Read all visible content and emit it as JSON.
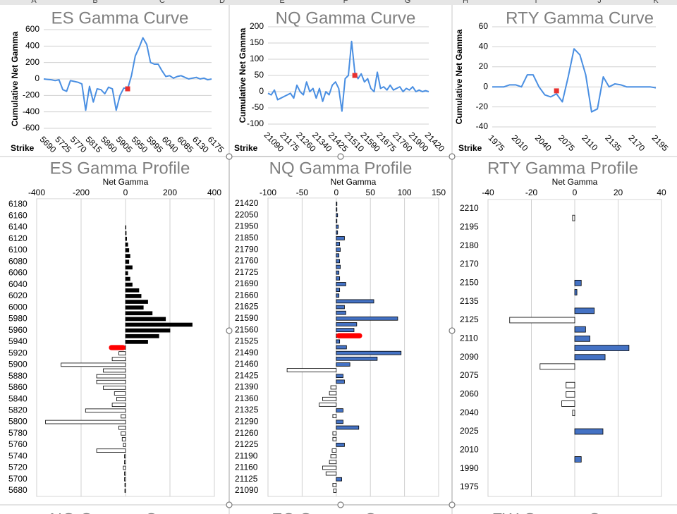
{
  "column_headers": [
    "A",
    "B",
    "C",
    "D",
    "E",
    "F",
    "G",
    "H",
    "I",
    "J",
    "K"
  ],
  "partial_titles": [
    "NG Gamma Curve",
    "ZC Gamma Curve",
    "ZW Gamma Curve"
  ],
  "chart_data": [
    {
      "type": "line",
      "title": "ES Gamma Curve",
      "y_axis_title": "Cumulative Net Gamma",
      "x_axis_title": "Strike",
      "grid": true,
      "ylim": [
        -600,
        600
      ],
      "yticks": [
        -600,
        -400,
        -200,
        0,
        200,
        400,
        600
      ],
      "categories": [
        5690,
        null,
        null,
        null,
        5725,
        null,
        null,
        null,
        5770,
        null,
        null,
        null,
        5815,
        null,
        null,
        null,
        5860,
        null,
        null,
        null,
        5905,
        null,
        null,
        null,
        5950,
        null,
        null,
        null,
        5995,
        null,
        null,
        null,
        6040,
        null,
        null,
        null,
        6085,
        null,
        null,
        null,
        6130,
        null,
        null,
        null,
        6175
      ],
      "series": [
        {
          "color": "#4a8fe2",
          "values": [
            0,
            -5,
            -10,
            -20,
            -10,
            -130,
            -150,
            -20,
            -30,
            -40,
            -60,
            -380,
            -90,
            -280,
            -120,
            -130,
            -180,
            -100,
            -120,
            -380,
            -200,
            -110,
            -120,
            40,
            280,
            380,
            500,
            420,
            200,
            180,
            180,
            100,
            30,
            40,
            10,
            30,
            40,
            20,
            0,
            10,
            20,
            0,
            10,
            -10,
            0
          ]
        },
        {
          "color": "#e8312f",
          "marker": "square",
          "values": [
            null,
            null,
            null,
            null,
            null,
            null,
            null,
            null,
            null,
            null,
            null,
            null,
            null,
            null,
            null,
            null,
            null,
            null,
            null,
            null,
            null,
            null,
            -120,
            null,
            null,
            null,
            null,
            null,
            null,
            null,
            null,
            null,
            null,
            null,
            null,
            null,
            null,
            null,
            null,
            null,
            null,
            null,
            null,
            null,
            null
          ]
        }
      ]
    },
    {
      "type": "line",
      "title": "NQ Gamma Curve",
      "y_axis_title": "Cumulative Net Gamma",
      "x_axis_title": "Strike",
      "grid": true,
      "ylim": [
        -100,
        200
      ],
      "yticks": [
        -100,
        -50,
        0,
        50,
        100,
        150,
        200
      ],
      "categories": [
        21090,
        null,
        null,
        null,
        null,
        21175,
        null,
        null,
        null,
        null,
        21260,
        null,
        null,
        null,
        null,
        21340,
        null,
        null,
        null,
        null,
        21425,
        null,
        null,
        null,
        null,
        21510,
        null,
        null,
        null,
        null,
        21590,
        null,
        null,
        null,
        null,
        21675,
        null,
        null,
        null,
        null,
        21760,
        null,
        null,
        null,
        null,
        21900,
        null,
        null,
        null,
        null,
        21420
      ],
      "series": [
        {
          "color": "#4a8fe2",
          "values": [
            -5,
            -10,
            5,
            -25,
            -20,
            -15,
            -10,
            -5,
            -20,
            20,
            0,
            -10,
            30,
            0,
            10,
            -20,
            10,
            -30,
            0,
            -10,
            20,
            30,
            10,
            -60,
            40,
            50,
            155,
            60,
            40,
            55,
            30,
            40,
            10,
            0,
            60,
            10,
            15,
            5,
            20,
            5,
            10,
            15,
            0,
            10,
            5,
            15,
            0,
            5,
            0,
            3,
            0
          ]
        },
        {
          "color": "#e8312f",
          "marker": "square",
          "values": [
            null,
            null,
            null,
            null,
            null,
            null,
            null,
            null,
            null,
            null,
            null,
            null,
            null,
            null,
            null,
            null,
            null,
            null,
            null,
            null,
            null,
            null,
            null,
            null,
            null,
            null,
            null,
            50,
            null,
            null,
            null,
            null,
            null,
            null,
            null,
            null,
            null,
            null,
            null,
            null,
            null,
            null,
            null,
            null,
            null,
            null,
            null,
            null,
            null,
            null,
            null
          ]
        }
      ]
    },
    {
      "type": "line",
      "title": "RTY Gamma Curve",
      "y_axis_title": "Cumulative Net Gamma",
      "x_axis_title": "Strike",
      "grid": true,
      "ylim": [
        -40,
        60
      ],
      "yticks": [
        -40,
        -20,
        0,
        20,
        40,
        60
      ],
      "categories": [
        1975,
        null,
        null,
        null,
        2010,
        null,
        null,
        null,
        2040,
        null,
        null,
        null,
        2075,
        null,
        null,
        null,
        2110,
        null,
        null,
        null,
        2135,
        null,
        null,
        null,
        2170,
        null,
        null,
        null,
        2195
      ],
      "series": [
        {
          "color": "#4a8fe2",
          "values": [
            0,
            0,
            0,
            2,
            2,
            0,
            12,
            12,
            0,
            -8,
            -10,
            -7,
            -15,
            10,
            38,
            32,
            12,
            -25,
            -22,
            10,
            0,
            3,
            2,
            0,
            0,
            0,
            0,
            0,
            -1
          ]
        },
        {
          "color": "#e8312f",
          "marker": "square",
          "values": [
            null,
            null,
            null,
            null,
            null,
            null,
            null,
            null,
            null,
            null,
            null,
            -4,
            null,
            null,
            null,
            null,
            null,
            null,
            null,
            null,
            null,
            null,
            null,
            null,
            null,
            null,
            null,
            null,
            null
          ]
        }
      ]
    },
    {
      "type": "barh",
      "title": "ES Gamma Profile",
      "x_axis_title": "Net Gamma",
      "grid": true,
      "xlim": [
        -400,
        400
      ],
      "xticks": [
        -400,
        -200,
        0,
        200,
        400
      ],
      "categories": [
        6180,
        null,
        6160,
        null,
        6140,
        null,
        6120,
        null,
        6100,
        null,
        6080,
        null,
        6060,
        null,
        6040,
        null,
        6020,
        null,
        6000,
        null,
        5980,
        null,
        5960,
        null,
        5940,
        null,
        5920,
        null,
        5900,
        null,
        5880,
        null,
        5860,
        null,
        5840,
        null,
        5820,
        null,
        5800,
        null,
        5780,
        null,
        5760,
        null,
        5740,
        null,
        5720,
        null,
        5700,
        null,
        5680
      ],
      "series": [
        {
          "color": "#000000",
          "negative_color": "#ffffff",
          "border": "#000000",
          "values": [
            0,
            0,
            0,
            0,
            2,
            3,
            5,
            10,
            15,
            20,
            15,
            30,
            10,
            20,
            30,
            60,
            70,
            100,
            80,
            120,
            180,
            300,
            200,
            150,
            100,
            -40,
            -30,
            -60,
            -290,
            -100,
            -130,
            -130,
            -100,
            -50,
            -40,
            -60,
            -180,
            -20,
            -360,
            -30,
            -20,
            -15,
            -10,
            -130,
            -5,
            -5,
            -10,
            -5,
            -5,
            -3,
            -3
          ]
        },
        {
          "color": "#ff0000",
          "border": false,
          "values": [
            null,
            null,
            null,
            null,
            null,
            null,
            null,
            null,
            null,
            null,
            null,
            null,
            null,
            null,
            null,
            null,
            null,
            null,
            null,
            null,
            null,
            null,
            null,
            null,
            null,
            -75,
            null,
            null,
            null,
            null,
            null,
            null,
            null,
            null,
            null,
            null,
            null,
            null,
            null,
            null,
            null,
            null,
            null,
            null,
            null,
            null,
            null,
            null,
            null,
            null,
            null
          ]
        }
      ]
    },
    {
      "type": "barh",
      "title": "NQ Gamma Profile",
      "x_axis_title": "Net Gamma",
      "grid": true,
      "xlim": [
        -100,
        150
      ],
      "xticks": [
        -100,
        -50,
        0,
        50,
        100,
        150
      ],
      "categories": [
        21420,
        null,
        22050,
        null,
        21950,
        null,
        21850,
        null,
        21790,
        null,
        21760,
        null,
        21725,
        null,
        21690,
        null,
        21660,
        null,
        21625,
        null,
        21590,
        null,
        21560,
        null,
        21525,
        null,
        21490,
        null,
        21460,
        null,
        21425,
        null,
        21390,
        null,
        21360,
        null,
        21325,
        null,
        21290,
        null,
        21260,
        null,
        21225,
        null,
        21190,
        null,
        21160,
        null,
        21125,
        null,
        21090
      ],
      "series": [
        {
          "color": "#4472c4",
          "negative_color": "#ffffff",
          "border": "#000000",
          "values": [
            1,
            1,
            2,
            1,
            3,
            2,
            12,
            5,
            6,
            4,
            5,
            6,
            4,
            5,
            14,
            5,
            4,
            55,
            12,
            14,
            90,
            30,
            26,
            20,
            5,
            15,
            95,
            60,
            20,
            -72,
            10,
            12,
            -8,
            -10,
            -20,
            -25,
            10,
            -5,
            10,
            33,
            -5,
            -5,
            12,
            -6,
            -8,
            -10,
            -20,
            -15,
            8,
            -5,
            -4
          ]
        },
        {
          "color": "#ff0000",
          "border": false,
          "values": [
            null,
            null,
            null,
            null,
            null,
            null,
            null,
            null,
            null,
            null,
            null,
            null,
            null,
            null,
            null,
            null,
            null,
            null,
            null,
            null,
            null,
            null,
            null,
            38,
            null,
            null,
            null,
            null,
            null,
            null,
            null,
            null,
            null,
            null,
            null,
            null,
            null,
            null,
            null,
            null,
            null,
            null,
            null,
            null,
            null,
            null,
            null,
            null,
            null,
            null,
            null
          ]
        }
      ]
    },
    {
      "type": "barh",
      "title": "RTY Gamma Profile",
      "x_axis_title": "Net Gamma",
      "grid": true,
      "xlim": [
        -40,
        40
      ],
      "xticks": [
        -40,
        -20,
        0,
        20,
        40
      ],
      "categories": [
        2210,
        null,
        2195,
        null,
        2180,
        null,
        2170,
        null,
        2150,
        null,
        2135,
        null,
        2125,
        null,
        2110,
        null,
        2090,
        null,
        2075,
        null,
        2060,
        null,
        2040,
        null,
        2025,
        null,
        2010,
        null,
        1990,
        null,
        1975
      ],
      "series": [
        {
          "color": "#4472c4",
          "negative_color": "#ffffff",
          "border": "#000000",
          "values": [
            0,
            -1,
            0,
            0,
            0,
            0,
            0,
            0,
            3,
            1,
            0,
            9,
            -30,
            5,
            7,
            25,
            14,
            -16,
            0,
            -4,
            -4,
            -6,
            -1,
            0,
            13,
            0,
            0,
            3,
            0,
            0,
            0
          ]
        }
      ]
    }
  ]
}
